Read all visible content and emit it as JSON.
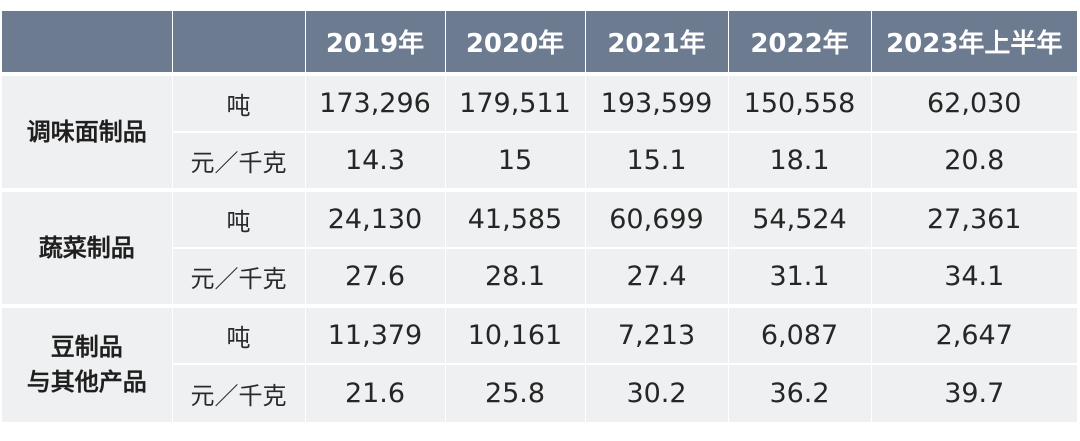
{
  "table": {
    "headers": [
      "",
      "",
      "2019年",
      "2020年",
      "2021年",
      "2022年",
      "2023年上半年"
    ],
    "groups": [
      {
        "category_lines": [
          "调味面制品"
        ],
        "rows": [
          {
            "unit": "吨",
            "values": [
              "173,296",
              "179,511",
              "193,599",
              "150,558",
              "62,030"
            ]
          },
          {
            "unit": "元／千克",
            "values": [
              "14.3",
              "15",
              "15.1",
              "18.1",
              "20.8"
            ]
          }
        ]
      },
      {
        "category_lines": [
          "蔬菜制品"
        ],
        "rows": [
          {
            "unit": "吨",
            "values": [
              "24,130",
              "41,585",
              "60,699",
              "54,524",
              "27,361"
            ]
          },
          {
            "unit": "元／千克",
            "values": [
              "27.6",
              "28.1",
              "27.4",
              "31.1",
              "34.1"
            ]
          }
        ]
      },
      {
        "category_lines": [
          "豆制品",
          "与其他产品"
        ],
        "rows": [
          {
            "unit": "吨",
            "values": [
              "11,379",
              "10,161",
              "7,213",
              "6,087",
              "2,647"
            ]
          },
          {
            "unit": "元／千克",
            "values": [
              "21.6",
              "25.8",
              "30.2",
              "36.2",
              "39.7"
            ]
          }
        ]
      }
    ]
  },
  "colors": {
    "header_bg": "#6d7b90",
    "cell_bg": "#eff0f1",
    "header_text": "#ffffff",
    "body_text": "#262626"
  }
}
